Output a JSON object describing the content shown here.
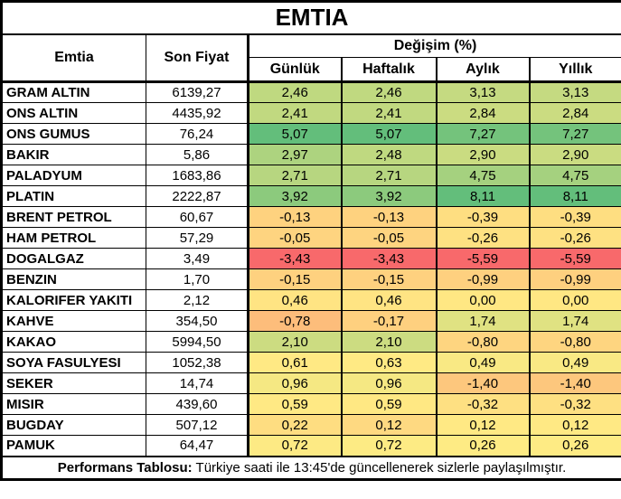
{
  "chart_data": {
    "type": "table",
    "title": "EMTIA",
    "header": {
      "commodity": "Emtia",
      "last_price": "Son Fiyat",
      "change_group": "Değişim (%)",
      "change_columns": [
        "Günlük",
        "Haftalık",
        "Aylık",
        "Yıllık"
      ]
    },
    "rows": [
      {
        "name": "GRAM ALTIN",
        "price": "6139,27",
        "changes": [
          "2,46",
          "2,46",
          "3,13",
          "3,13"
        ]
      },
      {
        "name": "ONS ALTIN",
        "price": "4435,92",
        "changes": [
          "2,41",
          "2,41",
          "2,84",
          "2,84"
        ]
      },
      {
        "name": "ONS GUMUS",
        "price": "76,24",
        "changes": [
          "5,07",
          "5,07",
          "7,27",
          "7,27"
        ]
      },
      {
        "name": "BAKIR",
        "price": "5,86",
        "changes": [
          "2,97",
          "2,48",
          "2,90",
          "2,90"
        ]
      },
      {
        "name": "PALADYUM",
        "price": "1683,86",
        "changes": [
          "2,71",
          "2,71",
          "4,75",
          "4,75"
        ]
      },
      {
        "name": "PLATIN",
        "price": "2222,87",
        "changes": [
          "3,92",
          "3,92",
          "8,11",
          "8,11"
        ]
      },
      {
        "name": "BRENT PETROL",
        "price": "60,67",
        "changes": [
          "-0,13",
          "-0,13",
          "-0,39",
          "-0,39"
        ]
      },
      {
        "name": "HAM PETROL",
        "price": "57,29",
        "changes": [
          "-0,05",
          "-0,05",
          "-0,26",
          "-0,26"
        ]
      },
      {
        "name": "DOGALGAZ",
        "price": "3,49",
        "changes": [
          "-3,43",
          "-3,43",
          "-5,59",
          "-5,59"
        ]
      },
      {
        "name": "BENZIN",
        "price": "1,70",
        "changes": [
          "-0,15",
          "-0,15",
          "-0,99",
          "-0,99"
        ]
      },
      {
        "name": "KALORIFER YAKITI",
        "price": "2,12",
        "changes": [
          "0,46",
          "0,46",
          "0,00",
          "0,00"
        ]
      },
      {
        "name": "KAHVE",
        "price": "354,50",
        "changes": [
          "-0,78",
          "-0,17",
          "1,74",
          "1,74"
        ]
      },
      {
        "name": "KAKAO",
        "price": "5994,50",
        "changes": [
          "2,10",
          "2,10",
          "-0,80",
          "-0,80"
        ]
      },
      {
        "name": "SOYA FASULYESI",
        "price": "1052,38",
        "changes": [
          "0,61",
          "0,63",
          "0,49",
          "0,49"
        ]
      },
      {
        "name": "SEKER",
        "price": "14,74",
        "changes": [
          "0,96",
          "0,96",
          "-1,40",
          "-1,40"
        ]
      },
      {
        "name": "MISIR",
        "price": "439,60",
        "changes": [
          "0,59",
          "0,59",
          "-0,32",
          "-0,32"
        ]
      },
      {
        "name": "BUGDAY",
        "price": "507,12",
        "changes": [
          "0,22",
          "0,12",
          "0,12",
          "0,12"
        ]
      },
      {
        "name": "PAMUK",
        "price": "64,47",
        "changes": [
          "0,72",
          "0,72",
          "0,26",
          "0,26"
        ]
      }
    ],
    "color_scale": {
      "type": "3-color",
      "scope": "per-column",
      "midpoint": "median",
      "min_color": "#F8696B",
      "mid_color": "#FFEB84",
      "max_color": "#63BE7B"
    },
    "footer": {
      "bold_label": "Performans Tablosu:",
      "text": "Türkiye saati ile 13:45'de güncellenerek sizlerle paylaşılmıştır."
    }
  },
  "colors": {
    "border": "#000000",
    "background": "#FFFFFF",
    "text": "#000000"
  }
}
